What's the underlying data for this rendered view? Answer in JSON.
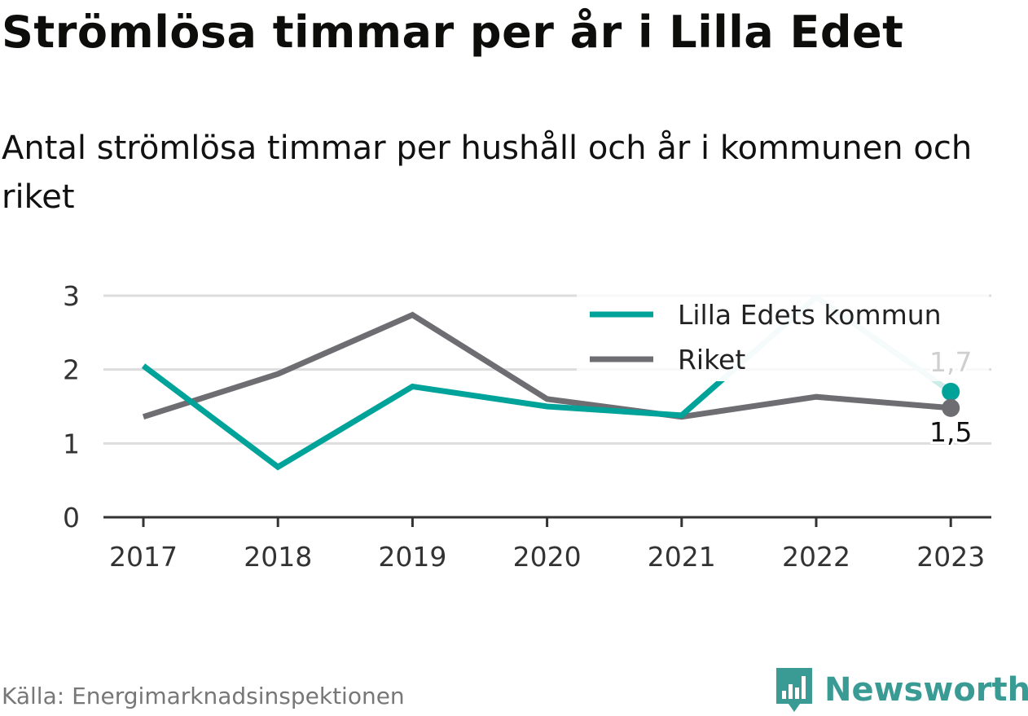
{
  "title": "Strömlösa timmar per år i Lilla Edet",
  "subtitle": "Antal strömlösa timmar per hushåll och år i kommunen och riket",
  "source": "Källa: Energimarknadsinspektionen",
  "brand": "Newsworthy",
  "colors": {
    "lilla_edet": "#00a39a",
    "lilla_edet_faded": "#ccecea",
    "riket": "#6e6d72",
    "grid": "#dddddd",
    "axis": "#333333",
    "brand": "#3a9a94"
  },
  "chart_data": {
    "type": "line",
    "x": [
      "2017",
      "2018",
      "2019",
      "2020",
      "2021",
      "2022",
      "2023"
    ],
    "ylim": [
      0,
      3
    ],
    "yticks": [
      "0",
      "1",
      "2",
      "3"
    ],
    "grid": true,
    "legend_position": "top-right",
    "series": [
      {
        "name": "Lilla Edets kommun",
        "values": [
          2.05,
          0.68,
          1.77,
          1.5,
          1.38,
          2.98,
          1.7
        ]
      },
      {
        "name": "Riket",
        "values": [
          1.36,
          1.94,
          2.74,
          1.6,
          1.36,
          1.63,
          1.48
        ]
      }
    ],
    "data_labels": [
      {
        "series": "Lilla Edets kommun",
        "x": "2023",
        "text": "1,7"
      },
      {
        "series": "Riket",
        "x": "2023",
        "text": "1,5"
      }
    ]
  }
}
